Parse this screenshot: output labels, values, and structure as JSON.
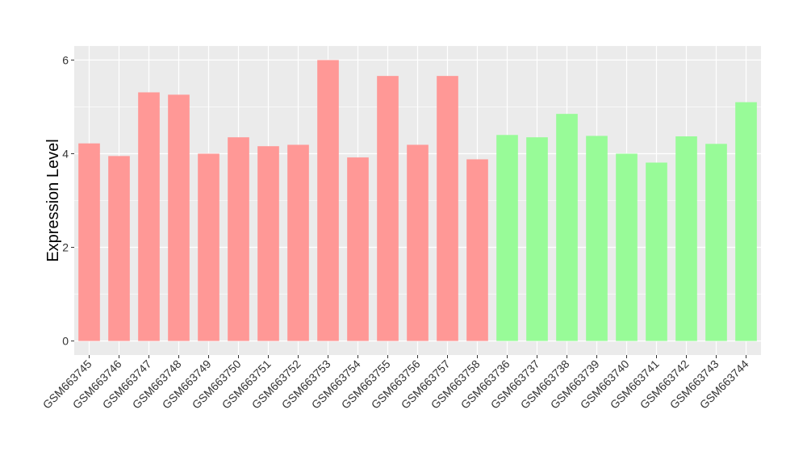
{
  "chart_data": {
    "type": "bar",
    "title": "",
    "xlabel": "",
    "ylabel": "Expression Level",
    "ylim": [
      -0.3,
      6.3
    ],
    "yticks": [
      0,
      2,
      4,
      6
    ],
    "grid": true,
    "legend": "none",
    "categories": [
      "GSM663745",
      "GSM663746",
      "GSM663747",
      "GSM663748",
      "GSM663749",
      "GSM663750",
      "GSM663751",
      "GSM663752",
      "GSM663753",
      "GSM663754",
      "GSM663755",
      "GSM663756",
      "GSM663757",
      "GSM663758",
      "GSM663736",
      "GSM663737",
      "GSM663738",
      "GSM663739",
      "GSM663740",
      "GSM663741",
      "GSM663742",
      "GSM663743",
      "GSM663744"
    ],
    "values": [
      4.22,
      3.95,
      5.31,
      5.26,
      4.0,
      4.35,
      4.16,
      4.19,
      6.0,
      3.92,
      5.66,
      4.19,
      5.66,
      3.88,
      4.4,
      4.35,
      4.85,
      4.38,
      4.0,
      3.81,
      4.37,
      4.21,
      5.1
    ],
    "groups": [
      "red",
      "red",
      "red",
      "red",
      "red",
      "red",
      "red",
      "red",
      "red",
      "red",
      "red",
      "red",
      "red",
      "red",
      "green",
      "green",
      "green",
      "green",
      "green",
      "green",
      "green",
      "green",
      "green"
    ],
    "colors": {
      "red": "#ff9896",
      "green": "#98fb98",
      "panel": "#ebebeb",
      "grid": "#ffffff"
    }
  }
}
